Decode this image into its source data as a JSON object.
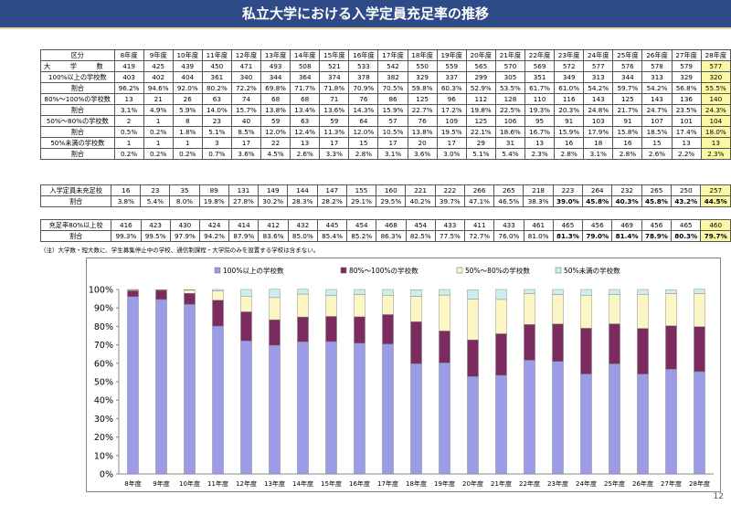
{
  "title": "私立大学における入学定員充足率の推移",
  "years": [
    "8年度",
    "9年度",
    "10年度",
    "11年度",
    "12年度",
    "13年度",
    "14年度",
    "15年度",
    "16年度",
    "17年度",
    "18年度",
    "19年度",
    "20年度",
    "21年度",
    "22年度",
    "23年度",
    "24年度",
    "25年度",
    "26年度",
    "27年度",
    "28年度"
  ],
  "table1": {
    "header_label": "区分",
    "rows": [
      {
        "label": "大　　　学　　　数",
        "values": [
          "419",
          "425",
          "439",
          "450",
          "471",
          "493",
          "508",
          "521",
          "533",
          "542",
          "550",
          "559",
          "565",
          "570",
          "569",
          "572",
          "577",
          "576",
          "578",
          "579",
          "577"
        ]
      },
      {
        "label": "100%以上の学校数",
        "values": [
          "403",
          "402",
          "404",
          "361",
          "340",
          "344",
          "364",
          "374",
          "378",
          "382",
          "329",
          "337",
          "299",
          "305",
          "351",
          "349",
          "313",
          "344",
          "313",
          "329",
          "320"
        ]
      },
      {
        "label": "割合",
        "values": [
          "96.2%",
          "94.6%",
          "92.0%",
          "80.2%",
          "72.2%",
          "69.8%",
          "71.7%",
          "71.8%",
          "70.9%",
          "70.5%",
          "59.8%",
          "60.3%",
          "52.9%",
          "53.5%",
          "61.7%",
          "61.0%",
          "54.2%",
          "59.7%",
          "54.2%",
          "56.8%",
          "55.5%"
        ]
      },
      {
        "label": "80%～100%の学校数",
        "values": [
          "13",
          "21",
          "26",
          "63",
          "74",
          "68",
          "68",
          "71",
          "76",
          "86",
          "125",
          "96",
          "112",
          "128",
          "110",
          "116",
          "143",
          "125",
          "143",
          "136",
          "140"
        ]
      },
      {
        "label": "割合",
        "values": [
          "3.1%",
          "4.9%",
          "5.9%",
          "14.0%",
          "15.7%",
          "13.8%",
          "13.4%",
          "13.6%",
          "14.3%",
          "15.9%",
          "22.7%",
          "17.2%",
          "19.8%",
          "22.5%",
          "19.3%",
          "20.3%",
          "24.8%",
          "21.7%",
          "24.7%",
          "23.5%",
          "24.3%"
        ]
      },
      {
        "label": "50%～80%の学校数",
        "values": [
          "2",
          "1",
          "8",
          "23",
          "40",
          "59",
          "63",
          "59",
          "64",
          "57",
          "76",
          "109",
          "125",
          "106",
          "95",
          "91",
          "103",
          "91",
          "107",
          "101",
          "104"
        ]
      },
      {
        "label": "割合",
        "values": [
          "0.5%",
          "0.2%",
          "1.8%",
          "5.1%",
          "8.5%",
          "12.0%",
          "12.4%",
          "11.3%",
          "12.0%",
          "10.5%",
          "13.8%",
          "19.5%",
          "22.1%",
          "18.6%",
          "16.7%",
          "15.9%",
          "17.9%",
          "15.8%",
          "18.5%",
          "17.4%",
          "18.0%"
        ]
      },
      {
        "label": "50%未満の学校数",
        "values": [
          "1",
          "1",
          "1",
          "3",
          "17",
          "22",
          "13",
          "17",
          "15",
          "17",
          "20",
          "17",
          "29",
          "31",
          "13",
          "16",
          "18",
          "16",
          "15",
          "13",
          "13"
        ]
      },
      {
        "label": "割合",
        "values": [
          "0.2%",
          "0.2%",
          "0.2%",
          "0.7%",
          "3.6%",
          "4.5%",
          "2.6%",
          "3.3%",
          "2.8%",
          "3.1%",
          "3.6%",
          "3.0%",
          "5.1%",
          "5.4%",
          "2.3%",
          "2.8%",
          "3.1%",
          "2.8%",
          "2.6%",
          "2.2%",
          "2.3%"
        ]
      }
    ]
  },
  "table2": {
    "rows": [
      {
        "label": "入学定員未充足校",
        "values": [
          "16",
          "23",
          "35",
          "89",
          "131",
          "149",
          "144",
          "147",
          "155",
          "160",
          "221",
          "222",
          "266",
          "265",
          "218",
          "223",
          "264",
          "232",
          "265",
          "250",
          "257"
        ]
      },
      {
        "label": "割合",
        "values": [
          "3.8%",
          "5.4%",
          "8.0%",
          "19.8%",
          "27.8%",
          "30.2%",
          "28.3%",
          "28.2%",
          "29.1%",
          "29.5%",
          "40.2%",
          "39.7%",
          "47.1%",
          "46.5%",
          "38.3%",
          "39.0%",
          "45.8%",
          "40.3%",
          "45.8%",
          "43.2%",
          "44.5%"
        ]
      }
    ]
  },
  "table3": {
    "rows": [
      {
        "label": "充足率80%以上校",
        "values": [
          "416",
          "423",
          "430",
          "424",
          "414",
          "412",
          "432",
          "445",
          "454",
          "468",
          "454",
          "433",
          "411",
          "433",
          "461",
          "465",
          "456",
          "469",
          "456",
          "465",
          "460"
        ]
      },
      {
        "label": "割合",
        "values": [
          "99.3%",
          "99.5%",
          "97.9%",
          "94.2%",
          "87.9%",
          "83.6%",
          "85.0%",
          "85.4%",
          "85.2%",
          "86.3%",
          "82.5%",
          "77.5%",
          "72.7%",
          "76.0%",
          "81.0%",
          "81.3%",
          "79.0%",
          "81.4%",
          "78.9%",
          "80.3%",
          "79.7%"
        ]
      }
    ]
  },
  "note": "（注）大学数・短大数に、学生募集停止中の学校、通信制課程・大学院のみを設置する学校は含まない。",
  "page_number": "12",
  "colors": {
    "title_bg": "#2e4a87",
    "s1": "#9b9be6",
    "s2": "#7b2b5e",
    "s3": "#fbf6c4",
    "s4": "#cdeeee",
    "highlight": "#fcf9a6"
  },
  "chart_data": {
    "type": "bar",
    "stacked": true,
    "categories": [
      "8年度",
      "9年度",
      "10年度",
      "11年度",
      "12年度",
      "13年度",
      "14年度",
      "15年度",
      "16年度",
      "17年度",
      "18年度",
      "19年度",
      "20年度",
      "21年度",
      "22年度",
      "23年度",
      "24年度",
      "25年度",
      "26年度",
      "27年度",
      "28年度"
    ],
    "series": [
      {
        "name": "100%以上の学校数",
        "values": [
          96.2,
          94.6,
          92.0,
          80.2,
          72.2,
          69.8,
          71.7,
          71.8,
          70.9,
          70.5,
          59.8,
          60.3,
          52.9,
          53.5,
          61.7,
          61.0,
          54.2,
          59.7,
          54.2,
          56.8,
          55.5
        ]
      },
      {
        "name": "80%～100%の学校数",
        "values": [
          3.1,
          4.9,
          5.9,
          14.0,
          15.7,
          13.8,
          13.4,
          13.6,
          14.3,
          15.9,
          22.7,
          17.2,
          19.8,
          22.5,
          19.3,
          20.3,
          24.8,
          21.7,
          24.7,
          23.5,
          24.3
        ]
      },
      {
        "name": "50%～80%の学校数",
        "values": [
          0.5,
          0.2,
          1.8,
          5.1,
          8.5,
          12.0,
          12.4,
          11.3,
          12.0,
          10.5,
          13.8,
          19.5,
          22.1,
          18.6,
          16.7,
          15.9,
          17.9,
          15.8,
          18.5,
          17.4,
          18.0
        ]
      },
      {
        "name": "50%未満の学校数",
        "values": [
          0.2,
          0.2,
          0.2,
          0.7,
          3.6,
          4.5,
          2.6,
          3.3,
          2.8,
          3.1,
          3.6,
          3.0,
          5.1,
          5.4,
          2.3,
          2.8,
          3.1,
          2.8,
          2.6,
          2.2,
          2.3
        ]
      }
    ],
    "yticks": [
      "0%",
      "10%",
      "20%",
      "30%",
      "40%",
      "50%",
      "60%",
      "70%",
      "80%",
      "90%",
      "100%"
    ],
    "ylim": [
      0,
      100
    ],
    "grid": false,
    "legend_position": "top"
  }
}
